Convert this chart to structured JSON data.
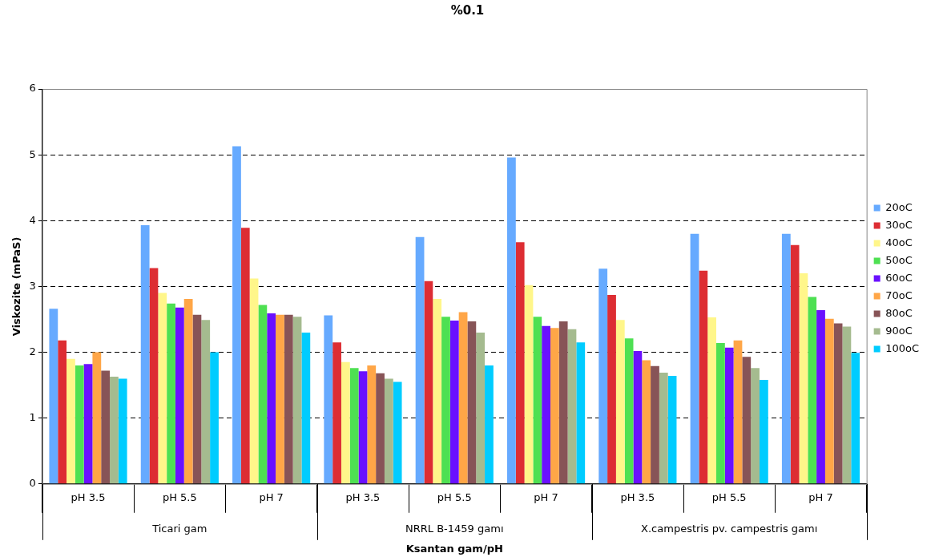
{
  "chart_data": {
    "type": "bar",
    "title": "%0.1",
    "xlabel": "Ksantan gam/pH",
    "ylabel": "Viskozite (mPaS)",
    "categories": [
      "pH 3.5",
      "pH 5.5",
      "pH 7",
      "pH 3.5",
      "pH 5.5",
      "pH 7",
      "pH 3.5",
      "pH 5.5",
      "pH 7"
    ],
    "annotations": [
      "Ticari gam",
      "NRRL B-1459 gamı",
      "X.campestris pv. campestris gamı"
    ],
    "series": [
      {
        "name": "20oC",
        "color": "#66aaff",
        "values": [
          2.66,
          3.93,
          5.13,
          2.56,
          3.75,
          4.96,
          3.27,
          3.8,
          3.8
        ]
      },
      {
        "name": "30oC",
        "color": "#dd2d33",
        "values": [
          2.18,
          3.28,
          3.89,
          2.15,
          3.08,
          3.67,
          2.87,
          3.24,
          3.63
        ]
      },
      {
        "name": "40oC",
        "color": "#fff68a",
        "values": [
          1.9,
          2.9,
          3.12,
          1.85,
          2.81,
          3.02,
          2.49,
          2.53,
          3.2
        ]
      },
      {
        "name": "50oC",
        "color": "#4ee052",
        "values": [
          1.8,
          2.74,
          2.72,
          1.76,
          2.54,
          2.54,
          2.21,
          2.14,
          2.84
        ]
      },
      {
        "name": "60oC",
        "color": "#6a10ff",
        "values": [
          1.82,
          2.68,
          2.59,
          1.71,
          2.48,
          2.4,
          2.02,
          2.07,
          2.64
        ]
      },
      {
        "name": "70oC",
        "color": "#ffa647",
        "values": [
          2.0,
          2.81,
          2.57,
          1.8,
          2.61,
          2.37,
          1.88,
          2.18,
          2.51
        ]
      },
      {
        "name": "80oC",
        "color": "#875457",
        "values": [
          1.72,
          2.57,
          2.57,
          1.68,
          2.47,
          2.47,
          1.79,
          1.93,
          2.44
        ]
      },
      {
        "name": "90oC",
        "color": "#a5bb8f",
        "values": [
          1.63,
          2.49,
          2.54,
          1.6,
          2.3,
          2.35,
          1.69,
          1.76,
          2.39
        ]
      },
      {
        "name": "100oC",
        "color": "#00ccff",
        "values": [
          1.6,
          2.0,
          2.3,
          1.55,
          1.8,
          2.15,
          1.64,
          1.58,
          1.99
        ]
      }
    ],
    "ylim": [
      0,
      6
    ],
    "yticks": [
      0,
      1,
      2,
      3,
      4,
      5,
      6
    ],
    "grid": "y",
    "legend": "right"
  }
}
